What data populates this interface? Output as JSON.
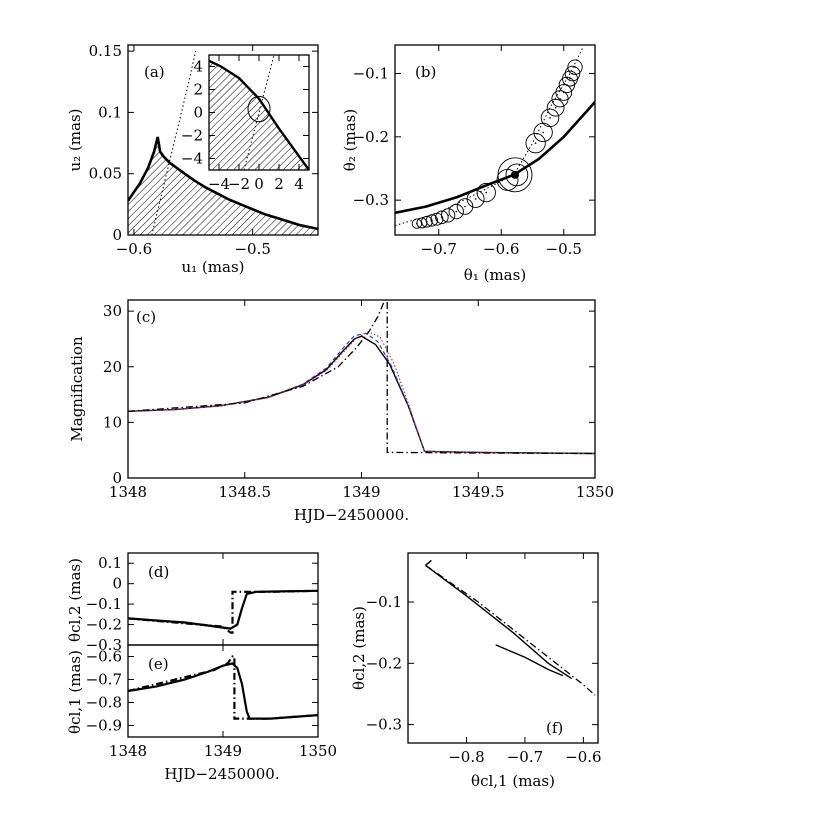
{
  "chart_data": [
    {
      "panel": "(a)",
      "type": "line",
      "xlabel": "u₁ (mas)",
      "ylabel": "u₂ (mas)",
      "xlim": [
        -0.605,
        -0.445
      ],
      "ylim": [
        0,
        0.155
      ],
      "xticks": [
        "-0.6",
        "-0.5"
      ],
      "yticks": [
        "0",
        "0.05",
        "0.1",
        "0.15"
      ],
      "series": [
        {
          "style": "thick-solid caustic (hatched below)",
          "x": [
            -0.605,
            -0.595,
            -0.588,
            -0.583,
            -0.58,
            -0.578,
            -0.575,
            -0.57,
            -0.56,
            -0.55,
            -0.54,
            -0.53,
            -0.52,
            -0.51,
            -0.5,
            -0.49,
            -0.48,
            -0.47,
            -0.46,
            -0.445
          ],
          "y": [
            0.028,
            0.042,
            0.055,
            0.068,
            0.08,
            0.068,
            0.064,
            0.059,
            0.052,
            0.045,
            0.039,
            0.034,
            0.029,
            0.025,
            0.021,
            0.017,
            0.014,
            0.011,
            0.008,
            0.005
          ]
        },
        {
          "style": "dotted source trajectory",
          "x": [
            -0.585,
            -0.575,
            -0.565,
            -0.555,
            -0.548
          ],
          "y": [
            0,
            0.04,
            0.08,
            0.12,
            0.15
          ]
        }
      ],
      "inset": {
        "xlim": [
          -5,
          5
        ],
        "ylim": [
          -5,
          5
        ],
        "xticks": [
          "-4",
          "-2",
          "0",
          "2",
          "4"
        ],
        "yticks": [
          "-4",
          "-2",
          "0",
          "2",
          "4"
        ],
        "caustic": {
          "x": [
            -5,
            -3.8,
            -2,
            0,
            2,
            4,
            5
          ],
          "y": [
            4.5,
            4,
            3,
            1.2,
            -1.4,
            -3.8,
            -5
          ]
        },
        "trajectory": {
          "x": [
            -1.5,
            1.5
          ],
          "y": [
            -5,
            5
          ]
        },
        "source_circle": {
          "x": 0,
          "y": 0.3,
          "r": 1.1
        }
      }
    },
    {
      "panel": "(b)",
      "type": "scatter",
      "xlabel": "θ₁ (mas)",
      "ylabel": "θ₂ (mas)",
      "xlim": [
        -0.77,
        -0.45
      ],
      "ylim": [
        -0.355,
        -0.055
      ],
      "xticks": [
        "-0.7",
        "-0.6",
        "-0.5"
      ],
      "yticks": [
        "-0.3",
        "-0.2",
        "-0.1"
      ],
      "curve": {
        "x": [
          -0.77,
          -0.72,
          -0.67,
          -0.62,
          -0.58,
          -0.54,
          -0.5,
          -0.45
        ],
        "y": [
          -0.32,
          -0.31,
          -0.295,
          -0.275,
          -0.26,
          -0.235,
          -0.2,
          -0.145
        ]
      },
      "dotted": {
        "x": [
          -0.77,
          -0.7,
          -0.62,
          -0.58,
          -0.55,
          -0.52,
          -0.49,
          -0.47
        ],
        "y": [
          -0.34,
          -0.32,
          -0.28,
          -0.26,
          -0.21,
          -0.15,
          -0.1,
          -0.06
        ]
      },
      "images": {
        "x": [
          -0.735,
          -0.727,
          -0.719,
          -0.711,
          -0.703,
          -0.695,
          -0.685,
          -0.672,
          -0.658,
          -0.641,
          -0.624,
          -0.59,
          -0.575,
          -0.545,
          -0.533,
          -0.522,
          -0.513,
          -0.506,
          -0.5,
          -0.495,
          -0.49,
          -0.486,
          -0.482
        ],
        "y": [
          -0.337,
          -0.336,
          -0.334,
          -0.332,
          -0.33,
          -0.327,
          -0.324,
          -0.318,
          -0.31,
          -0.298,
          -0.288,
          -0.268,
          -0.26,
          -0.21,
          -0.193,
          -0.17,
          -0.154,
          -0.14,
          -0.13,
          -0.118,
          -0.108,
          -0.1,
          -0.09
        ]
      },
      "lens_point": {
        "x": -0.578,
        "y": -0.26
      }
    },
    {
      "panel": "(c)",
      "type": "line",
      "xlabel": "HJD−2450000.",
      "ylabel": "Magnification",
      "xlim": [
        1348,
        1350
      ],
      "ylim": [
        0,
        32
      ],
      "xticks": [
        "1348",
        "1348.5",
        "1349",
        "1349.5",
        "1350"
      ],
      "yticks": [
        "0",
        "10",
        "20",
        "30"
      ],
      "series": [
        {
          "style": "solid black",
          "x": [
            1348,
            1348.2,
            1348.4,
            1348.6,
            1348.75,
            1348.85,
            1348.92,
            1348.97,
            1349,
            1349.06,
            1349.12,
            1349.2,
            1349.27,
            1349.5,
            1350
          ],
          "y": [
            12,
            12.3,
            13,
            14.5,
            16.8,
            19.5,
            22.8,
            25,
            25.5,
            24,
            20.5,
            13,
            4.8,
            4.6,
            4.4
          ]
        },
        {
          "style": "dashed blue",
          "x": [
            1348,
            1348.2,
            1348.4,
            1348.6,
            1348.75,
            1348.85,
            1348.92,
            1348.97,
            1349.02,
            1349.07,
            1349.13,
            1349.2,
            1349.27,
            1349.5,
            1350
          ],
          "y": [
            12,
            12.3,
            13,
            14.5,
            16.9,
            19.8,
            23.3,
            25.6,
            26,
            24.5,
            20,
            13,
            4.8,
            4.6,
            4.4
          ]
        },
        {
          "style": "dotted red",
          "x": [
            1348,
            1348.2,
            1348.4,
            1348.6,
            1348.75,
            1348.85,
            1348.92,
            1348.98,
            1349.03,
            1349.08,
            1349.14,
            1349.2,
            1349.27,
            1349.5,
            1350
          ],
          "y": [
            12,
            12.3,
            13,
            14.4,
            16.7,
            19.3,
            22.5,
            25.2,
            26.3,
            25.3,
            20.5,
            13.5,
            4.8,
            4.6,
            4.4
          ]
        },
        {
          "style": "dash-dot black",
          "x": [
            1348,
            1348.5,
            1348.75,
            1348.9,
            1348.98,
            1349.03,
            1349.07,
            1349.1,
            1349.105,
            1349.11,
            1349.11,
            1349.5,
            1350
          ],
          "y": [
            12,
            13.5,
            16.5,
            20,
            23.5,
            26.2,
            29,
            32,
            32,
            32,
            4.6,
            4.5,
            4.4
          ]
        }
      ]
    },
    {
      "panel": "(d)",
      "type": "line",
      "ylabel": "θcl,2 (mas)",
      "xlim": [
        1348,
        1350
      ],
      "ylim": [
        -0.3,
        0.15
      ],
      "yticks": [
        "0.1",
        "0",
        "-0.1",
        "-0.2",
        "-0.3"
      ],
      "series": [
        {
          "style": "solid",
          "x": [
            1348,
            1348.3,
            1348.6,
            1348.85,
            1349,
            1349.08,
            1349.15,
            1349.2,
            1349.25,
            1349.35,
            1349.6,
            1350
          ],
          "y": [
            -0.17,
            -0.18,
            -0.19,
            -0.205,
            -0.215,
            -0.22,
            -0.2,
            -0.12,
            -0.05,
            -0.04,
            -0.038,
            -0.035
          ]
        },
        {
          "style": "dash-dot",
          "x": [
            1348,
            1349,
            1349.08,
            1349.1,
            1349.1,
            1349.5,
            1350
          ],
          "y": [
            -0.17,
            -0.21,
            -0.24,
            -0.24,
            -0.04,
            -0.04,
            -0.035
          ]
        }
      ]
    },
    {
      "panel": "(e)",
      "type": "line",
      "xlabel": "HJD−2450000.",
      "ylabel": "θcl,1 (mas)",
      "xlim": [
        1348,
        1350
      ],
      "ylim": [
        -0.95,
        -0.55
      ],
      "xticks": [
        "1348",
        "1349",
        "1350"
      ],
      "yticks": [
        "-0.6",
        "-0.7",
        "-0.8",
        "-0.9"
      ],
      "series": [
        {
          "style": "solid",
          "x": [
            1348,
            1348.3,
            1348.6,
            1348.85,
            1349,
            1349.1,
            1349.15,
            1349.2,
            1349.25,
            1349.28,
            1349.5,
            1350
          ],
          "y": [
            -0.75,
            -0.73,
            -0.7,
            -0.665,
            -0.64,
            -0.63,
            -0.65,
            -0.72,
            -0.84,
            -0.87,
            -0.87,
            -0.855
          ]
        },
        {
          "style": "dash-dot",
          "x": [
            1348,
            1348.9,
            1349.05,
            1349.1,
            1349.12,
            1349.12,
            1349.5,
            1350
          ],
          "y": [
            -0.75,
            -0.66,
            -0.63,
            -0.6,
            -0.6,
            -0.87,
            -0.87,
            -0.855
          ]
        }
      ]
    },
    {
      "panel": "(f)",
      "type": "line",
      "xlabel": "θcl,1 (mas)",
      "ylabel": "θcl,2 (mas)",
      "xlim": [
        -0.9,
        -0.575
      ],
      "ylim": [
        -0.33,
        -0.02
      ],
      "xticks": [
        "-0.8",
        "-0.7",
        "-0.6"
      ],
      "yticks": [
        "-0.1",
        "-0.2",
        "-0.3"
      ],
      "series": [
        {
          "style": "solid",
          "x": [
            -0.87,
            -0.8,
            -0.72,
            -0.66,
            -0.62
          ],
          "y": [
            -0.04,
            -0.09,
            -0.15,
            -0.2,
            -0.225
          ]
        },
        {
          "style": "solid",
          "x": [
            -0.75,
            -0.7,
            -0.66,
            -0.635
          ],
          "y": [
            -0.17,
            -0.19,
            -0.21,
            -0.22
          ]
        },
        {
          "style": "solid",
          "x": [
            -0.87,
            -0.86
          ],
          "y": [
            -0.04,
            -0.032
          ]
        },
        {
          "style": "dash-dot",
          "x": [
            -0.87,
            -0.78,
            -0.7,
            -0.64,
            -0.6,
            -0.58
          ],
          "y": [
            -0.04,
            -0.1,
            -0.16,
            -0.205,
            -0.235,
            -0.252
          ]
        }
      ]
    }
  ]
}
